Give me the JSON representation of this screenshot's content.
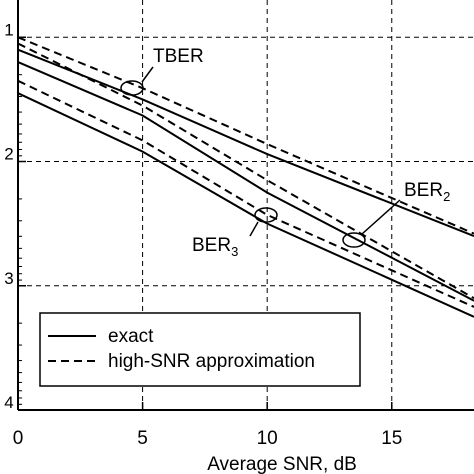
{
  "chart_data": {
    "type": "line",
    "xlabel": "Average SNR, dB",
    "x_ticks": [
      0,
      5,
      10,
      15
    ],
    "y_ticks": [
      1,
      2,
      3,
      4
    ],
    "y_tick_labels": [
      "1",
      "2",
      "3",
      "4"
    ],
    "xlim": [
      0,
      18.3
    ],
    "ylim": [
      0.7,
      4
    ],
    "y_scale": "log10 of error rate (exponent shown)",
    "grid": true,
    "series": [
      {
        "name": "TBER",
        "style": "exact",
        "x": [
          0,
          5,
          10,
          18.3
        ],
        "y": [
          1.1,
          1.5,
          1.94,
          2.6
        ]
      },
      {
        "name": "TBER",
        "style": "high-SNR approximation",
        "x": [
          0,
          5,
          10,
          18.3
        ],
        "y": [
          1.0,
          1.41,
          1.86,
          2.58
        ]
      },
      {
        "name": "BER2",
        "style": "exact",
        "x": [
          0,
          5,
          10,
          18.3
        ],
        "y": [
          1.2,
          1.63,
          2.25,
          3.12
        ]
      },
      {
        "name": "BER2",
        "style": "high-SNR approximation",
        "x": [
          0,
          5,
          10,
          18.3
        ],
        "y": [
          1.05,
          1.55,
          2.15,
          3.1
        ]
      },
      {
        "name": "BER3",
        "style": "exact",
        "x": [
          0,
          5,
          10,
          18.3
        ],
        "y": [
          1.45,
          1.92,
          2.5,
          3.25
        ]
      },
      {
        "name": "BER3",
        "style": "high-SNR approximation",
        "x": [
          0,
          5,
          10,
          18.3
        ],
        "y": [
          1.35,
          1.83,
          2.43,
          3.17
        ]
      }
    ],
    "annotations": [
      {
        "text": "TBER"
      },
      {
        "text": "BER",
        "subscript": "2"
      },
      {
        "text": "BER",
        "subscript": "3"
      }
    ],
    "legend": {
      "placement": "bottom-left",
      "entries": [
        {
          "style": "solid",
          "label": "exact"
        },
        {
          "style": "dashed",
          "label": "high-SNR approximation"
        }
      ]
    }
  }
}
